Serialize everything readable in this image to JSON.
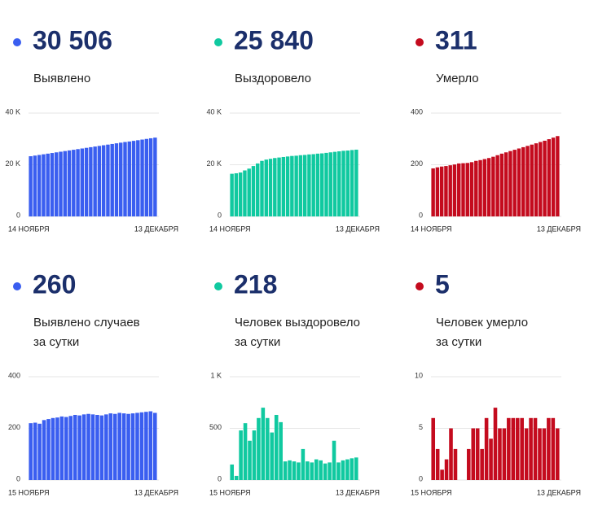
{
  "panels": [
    {
      "color": "#3a5ef0",
      "value": "30 506",
      "label": [
        "Выявлено"
      ],
      "chart": {
        "type": "bar",
        "categories": [
          "14 НОЯБРЯ",
          null,
          null,
          null,
          null,
          null,
          null,
          null,
          null,
          null,
          null,
          null,
          null,
          null,
          null,
          null,
          null,
          null,
          null,
          null,
          null,
          null,
          null,
          null,
          null,
          null,
          null,
          null,
          null,
          "13 ДЕКАБРЯ"
        ],
        "values": [
          23300,
          23550,
          23800,
          24050,
          24300,
          24550,
          24800,
          25050,
          25300,
          25550,
          25800,
          26050,
          26300,
          26550,
          26800,
          27050,
          27300,
          27550,
          27800,
          28050,
          28300,
          28550,
          28800,
          29000,
          29250,
          29500,
          29750,
          30000,
          30250,
          30506
        ],
        "ylim": [
          0,
          40000
        ],
        "yticks": [
          0,
          {
            "value": 20000,
            "label": "20 K"
          },
          {
            "value": 40000,
            "label": "40 K"
          }
        ]
      }
    },
    {
      "color": "#10c9a0",
      "value": "25 840",
      "label": [
        "Выздоровело"
      ],
      "chart": {
        "type": "bar",
        "categories": [
          "14 НОЯБРЯ",
          null,
          null,
          null,
          null,
          null,
          null,
          null,
          null,
          null,
          null,
          null,
          null,
          null,
          null,
          null,
          null,
          null,
          null,
          null,
          null,
          null,
          null,
          null,
          null,
          null,
          null,
          null,
          null,
          "13 ДЕКАБРЯ"
        ],
        "values": [
          16500,
          16700,
          17000,
          17800,
          18500,
          19500,
          20500,
          21500,
          22000,
          22300,
          22600,
          22800,
          23000,
          23200,
          23400,
          23500,
          23700,
          23800,
          24000,
          24100,
          24300,
          24400,
          24600,
          24800,
          25000,
          25200,
          25400,
          25500,
          25700,
          25840
        ],
        "ylim": [
          0,
          40000
        ],
        "yticks": [
          0,
          {
            "value": 20000,
            "label": "20 K"
          },
          {
            "value": 40000,
            "label": "40 K"
          }
        ]
      }
    },
    {
      "color": "#c40b1e",
      "value": "311",
      "label": [
        "Умерло"
      ],
      "chart": {
        "type": "bar",
        "categories": [
          "14 НОЯБРЯ",
          null,
          null,
          null,
          null,
          null,
          null,
          null,
          null,
          null,
          null,
          null,
          null,
          null,
          null,
          null,
          null,
          null,
          null,
          null,
          null,
          null,
          null,
          null,
          null,
          null,
          null,
          null,
          null,
          "13 ДЕКАБРЯ"
        ],
        "values": [
          186,
          190,
          193,
          195,
          198,
          201,
          205,
          206,
          207,
          210,
          215,
          218,
          222,
          226,
          231,
          237,
          243,
          248,
          253,
          258,
          263,
          268,
          273,
          278,
          283,
          288,
          293,
          299,
          305,
          311
        ],
        "ylim": [
          0,
          400
        ],
        "yticks": [
          0,
          200,
          400
        ]
      }
    },
    {
      "color": "#3a5ef0",
      "value": "260",
      "label": [
        "Выявлено случаев",
        "за сутки"
      ],
      "chart": {
        "type": "bar",
        "categories": [
          "15 НОЯБРЯ",
          null,
          null,
          null,
          null,
          null,
          null,
          null,
          null,
          null,
          null,
          null,
          null,
          null,
          null,
          null,
          null,
          null,
          null,
          null,
          null,
          null,
          null,
          null,
          null,
          null,
          null,
          null,
          "13 ДЕКАБРЯ"
        ],
        "values": [
          220,
          222,
          218,
          232,
          236,
          240,
          242,
          246,
          244,
          248,
          252,
          250,
          254,
          256,
          254,
          252,
          250,
          254,
          258,
          256,
          260,
          258,
          256,
          258,
          260,
          262,
          264,
          266,
          260
        ],
        "ylim": [
          0,
          400
        ],
        "yticks": [
          0,
          200,
          400
        ]
      }
    },
    {
      "color": "#10c9a0",
      "value": "218",
      "label": [
        "Человек выздоровело",
        "за сутки"
      ],
      "chart": {
        "type": "bar",
        "categories": [
          "15 НОЯБРЯ",
          null,
          null,
          null,
          null,
          null,
          null,
          null,
          null,
          null,
          null,
          null,
          null,
          null,
          null,
          null,
          null,
          null,
          null,
          null,
          null,
          null,
          null,
          null,
          null,
          null,
          null,
          null,
          "13 ДЕКАБРЯ"
        ],
        "values": [
          150,
          40,
          480,
          550,
          380,
          480,
          600,
          700,
          600,
          460,
          630,
          560,
          180,
          190,
          180,
          170,
          300,
          180,
          170,
          200,
          190,
          160,
          170,
          380,
          170,
          190,
          200,
          210,
          218
        ],
        "ylim": [
          0,
          1000
        ],
        "yticks": [
          0,
          500,
          {
            "value": 1000,
            "label": "1 K"
          }
        ]
      }
    },
    {
      "color": "#c40b1e",
      "value": "5",
      "label": [
        "Человек умерло",
        "за сутки"
      ],
      "chart": {
        "type": "bar",
        "categories": [
          "15 НОЯБРЯ",
          null,
          null,
          null,
          null,
          null,
          null,
          null,
          null,
          null,
          null,
          null,
          null,
          null,
          null,
          null,
          null,
          null,
          null,
          null,
          null,
          null,
          null,
          null,
          null,
          null,
          null,
          null,
          "13 ДЕКАБРЯ"
        ],
        "values": [
          6,
          3,
          1,
          2,
          5,
          3,
          0,
          0,
          3,
          5,
          5,
          3,
          6,
          4,
          7,
          5,
          5,
          6,
          6,
          6,
          6,
          5,
          6,
          6,
          5,
          5,
          6,
          6,
          5
        ],
        "ylim": [
          0,
          10
        ],
        "yticks": [
          0,
          5,
          10
        ]
      }
    }
  ]
}
